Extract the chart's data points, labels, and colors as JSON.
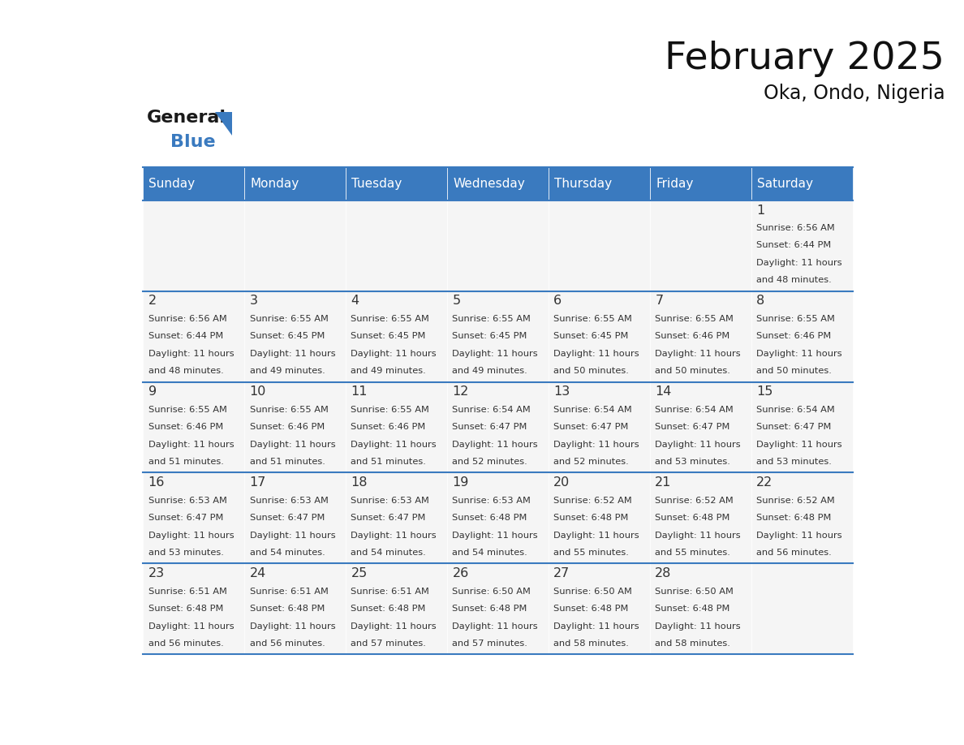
{
  "title": "February 2025",
  "subtitle": "Oka, Ondo, Nigeria",
  "header_color": "#3a7abf",
  "header_text_color": "#ffffff",
  "day_names": [
    "Sunday",
    "Monday",
    "Tuesday",
    "Wednesday",
    "Thursday",
    "Friday",
    "Saturday"
  ],
  "cell_bg_color": "#f5f5f5",
  "border_color": "#3a7abf",
  "day_num_color": "#333333",
  "text_color": "#333333",
  "days": [
    {
      "day": 1,
      "col": 6,
      "row": 0,
      "sunrise": "6:56 AM",
      "sunset": "6:44 PM",
      "daylight": "11 hours and 48 minutes."
    },
    {
      "day": 2,
      "col": 0,
      "row": 1,
      "sunrise": "6:56 AM",
      "sunset": "6:44 PM",
      "daylight": "11 hours and 48 minutes."
    },
    {
      "day": 3,
      "col": 1,
      "row": 1,
      "sunrise": "6:55 AM",
      "sunset": "6:45 PM",
      "daylight": "11 hours and 49 minutes."
    },
    {
      "day": 4,
      "col": 2,
      "row": 1,
      "sunrise": "6:55 AM",
      "sunset": "6:45 PM",
      "daylight": "11 hours and 49 minutes."
    },
    {
      "day": 5,
      "col": 3,
      "row": 1,
      "sunrise": "6:55 AM",
      "sunset": "6:45 PM",
      "daylight": "11 hours and 49 minutes."
    },
    {
      "day": 6,
      "col": 4,
      "row": 1,
      "sunrise": "6:55 AM",
      "sunset": "6:45 PM",
      "daylight": "11 hours and 50 minutes."
    },
    {
      "day": 7,
      "col": 5,
      "row": 1,
      "sunrise": "6:55 AM",
      "sunset": "6:46 PM",
      "daylight": "11 hours and 50 minutes."
    },
    {
      "day": 8,
      "col": 6,
      "row": 1,
      "sunrise": "6:55 AM",
      "sunset": "6:46 PM",
      "daylight": "11 hours and 50 minutes."
    },
    {
      "day": 9,
      "col": 0,
      "row": 2,
      "sunrise": "6:55 AM",
      "sunset": "6:46 PM",
      "daylight": "11 hours and 51 minutes."
    },
    {
      "day": 10,
      "col": 1,
      "row": 2,
      "sunrise": "6:55 AM",
      "sunset": "6:46 PM",
      "daylight": "11 hours and 51 minutes."
    },
    {
      "day": 11,
      "col": 2,
      "row": 2,
      "sunrise": "6:55 AM",
      "sunset": "6:46 PM",
      "daylight": "11 hours and 51 minutes."
    },
    {
      "day": 12,
      "col": 3,
      "row": 2,
      "sunrise": "6:54 AM",
      "sunset": "6:47 PM",
      "daylight": "11 hours and 52 minutes."
    },
    {
      "day": 13,
      "col": 4,
      "row": 2,
      "sunrise": "6:54 AM",
      "sunset": "6:47 PM",
      "daylight": "11 hours and 52 minutes."
    },
    {
      "day": 14,
      "col": 5,
      "row": 2,
      "sunrise": "6:54 AM",
      "sunset": "6:47 PM",
      "daylight": "11 hours and 53 minutes."
    },
    {
      "day": 15,
      "col": 6,
      "row": 2,
      "sunrise": "6:54 AM",
      "sunset": "6:47 PM",
      "daylight": "11 hours and 53 minutes."
    },
    {
      "day": 16,
      "col": 0,
      "row": 3,
      "sunrise": "6:53 AM",
      "sunset": "6:47 PM",
      "daylight": "11 hours and 53 minutes."
    },
    {
      "day": 17,
      "col": 1,
      "row": 3,
      "sunrise": "6:53 AM",
      "sunset": "6:47 PM",
      "daylight": "11 hours and 54 minutes."
    },
    {
      "day": 18,
      "col": 2,
      "row": 3,
      "sunrise": "6:53 AM",
      "sunset": "6:47 PM",
      "daylight": "11 hours and 54 minutes."
    },
    {
      "day": 19,
      "col": 3,
      "row": 3,
      "sunrise": "6:53 AM",
      "sunset": "6:48 PM",
      "daylight": "11 hours and 54 minutes."
    },
    {
      "day": 20,
      "col": 4,
      "row": 3,
      "sunrise": "6:52 AM",
      "sunset": "6:48 PM",
      "daylight": "11 hours and 55 minutes."
    },
    {
      "day": 21,
      "col": 5,
      "row": 3,
      "sunrise": "6:52 AM",
      "sunset": "6:48 PM",
      "daylight": "11 hours and 55 minutes."
    },
    {
      "day": 22,
      "col": 6,
      "row": 3,
      "sunrise": "6:52 AM",
      "sunset": "6:48 PM",
      "daylight": "11 hours and 56 minutes."
    },
    {
      "day": 23,
      "col": 0,
      "row": 4,
      "sunrise": "6:51 AM",
      "sunset": "6:48 PM",
      "daylight": "11 hours and 56 minutes."
    },
    {
      "day": 24,
      "col": 1,
      "row": 4,
      "sunrise": "6:51 AM",
      "sunset": "6:48 PM",
      "daylight": "11 hours and 56 minutes."
    },
    {
      "day": 25,
      "col": 2,
      "row": 4,
      "sunrise": "6:51 AM",
      "sunset": "6:48 PM",
      "daylight": "11 hours and 57 minutes."
    },
    {
      "day": 26,
      "col": 3,
      "row": 4,
      "sunrise": "6:50 AM",
      "sunset": "6:48 PM",
      "daylight": "11 hours and 57 minutes."
    },
    {
      "day": 27,
      "col": 4,
      "row": 4,
      "sunrise": "6:50 AM",
      "sunset": "6:48 PM",
      "daylight": "11 hours and 58 minutes."
    },
    {
      "day": 28,
      "col": 5,
      "row": 4,
      "sunrise": "6:50 AM",
      "sunset": "6:48 PM",
      "daylight": "11 hours and 58 minutes."
    }
  ],
  "num_rows": 5,
  "logo_color_general": "#1a1a1a",
  "logo_color_blue": "#3a7abf",
  "logo_triangle_color": "#3a7abf"
}
